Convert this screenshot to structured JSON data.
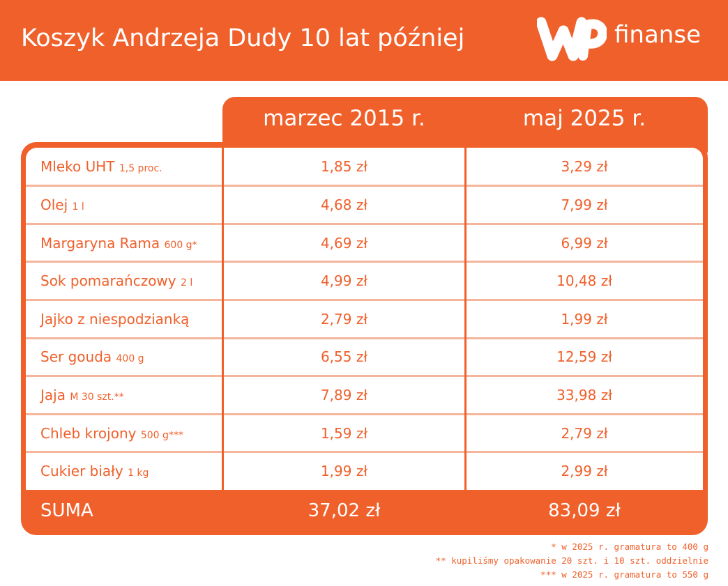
{
  "colors": {
    "accent": "#f0602b",
    "divider": "#f4b59a",
    "text_on_accent": "#ffffff"
  },
  "header": {
    "title": "Koszyk Andrzeja Dudy 10 lat później"
  },
  "logo": {
    "mark": "WP",
    "word": "finanse",
    "icon": "wp-logo-icon"
  },
  "chart_data": {
    "type": "table",
    "title": "Koszyk Andrzeja Dudy 10 lat później",
    "columns": [
      "marzec 2015 r.",
      "maj 2025 r."
    ],
    "rows": [
      {
        "name": "Mleko UHT",
        "unit": "1,5 proc.",
        "values": [
          "1,85 zł",
          "3,29 zł"
        ]
      },
      {
        "name": "Olej",
        "unit": "1 l",
        "values": [
          "4,68 zł",
          "7,99 zł"
        ]
      },
      {
        "name": "Margaryna Rama",
        "unit": "600 g*",
        "values": [
          "4,69 zł",
          "6,99 zł"
        ]
      },
      {
        "name": "Sok pomarańczowy",
        "unit": "2 l",
        "values": [
          "4,99 zł",
          "10,48 zł"
        ]
      },
      {
        "name": "Jajko z niespodzianką",
        "unit": "",
        "values": [
          "2,79 zł",
          "1,99 zł"
        ]
      },
      {
        "name": "Ser gouda",
        "unit": "400 g",
        "values": [
          "6,55 zł",
          "12,59 zł"
        ]
      },
      {
        "name": "Jaja",
        "unit": "M 30 szt.**",
        "values": [
          "7,89 zł",
          "33,98 zł"
        ]
      },
      {
        "name": "Chleb krojony",
        "unit": "500 g***",
        "values": [
          "1,59 zł",
          "2,79 zł"
        ]
      },
      {
        "name": "Cukier biały",
        "unit": "1 kg",
        "values": [
          "1,99 zł",
          "2,99 zł"
        ]
      }
    ],
    "total": {
      "label": "SUMA",
      "values": [
        "37,02 zł",
        "83,09 zł"
      ]
    }
  },
  "footnotes": [
    "* w 2025 r. gramatura to 400 g",
    "** kupiliśmy opakowanie 20 szt. i 10 szt. oddzielnie",
    "*** w 2025 r. gramatura to 550 g"
  ]
}
